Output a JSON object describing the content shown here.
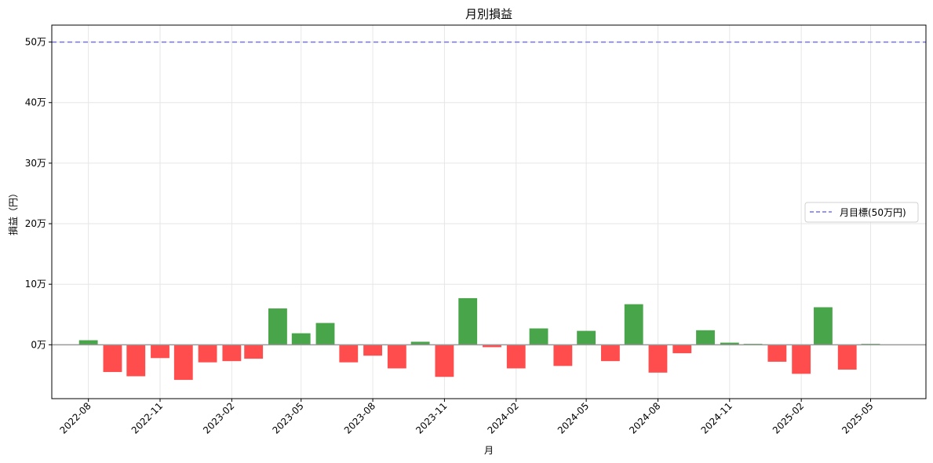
{
  "chart_data": {
    "type": "bar",
    "title": "月別損益",
    "xlabel": "月",
    "ylabel": "損益（円）",
    "ylim": [
      -89000,
      528000
    ],
    "x_range": [
      "2022-06-15",
      "2025-07-11"
    ],
    "yticks": [
      0,
      100000,
      200000,
      300000,
      400000,
      500000
    ],
    "yticklabels": [
      "0万",
      "10万",
      "20万",
      "30万",
      "40万",
      "50万"
    ],
    "xticks": [
      "2022-08-01",
      "2022-11-01",
      "2023-02-01",
      "2023-05-01",
      "2023-08-01",
      "2023-11-01",
      "2024-02-01",
      "2024-05-01",
      "2024-08-01",
      "2024-11-01",
      "2025-02-01",
      "2025-05-01"
    ],
    "xticklabels": [
      "2022-08",
      "2022-11",
      "2023-02",
      "2023-05",
      "2023-08",
      "2023-11",
      "2024-02",
      "2024-05",
      "2024-08",
      "2024-11",
      "2025-02",
      "2025-05"
    ],
    "categories": [
      "2022-08-01",
      "2022-09-01",
      "2022-10-01",
      "2022-11-01",
      "2022-12-01",
      "2023-01-01",
      "2023-02-01",
      "2023-03-01",
      "2023-04-01",
      "2023-05-01",
      "2023-06-01",
      "2023-07-01",
      "2023-08-01",
      "2023-09-01",
      "2023-10-01",
      "2023-11-01",
      "2023-12-01",
      "2024-01-01",
      "2024-02-01",
      "2024-03-01",
      "2024-04-01",
      "2024-05-01",
      "2024-06-01",
      "2024-07-01",
      "2024-08-01",
      "2024-09-01",
      "2024-10-01",
      "2024-11-01",
      "2024-12-01",
      "2025-01-01",
      "2025-02-01",
      "2025-03-01",
      "2025-04-01",
      "2025-05-01"
    ],
    "values": [
      7500,
      -45000,
      -52000,
      -22000,
      -58000,
      -29000,
      -27000,
      -23000,
      60000,
      19000,
      36000,
      -29000,
      -18000,
      -39000,
      5000,
      -53000,
      77000,
      -4000,
      -39000,
      27000,
      -35000,
      23000,
      -27000,
      67000,
      -46000,
      -14000,
      24000,
      3500,
      1500,
      -28000,
      -48000,
      62000,
      -41000,
      1500
    ],
    "colors": {
      "positive": "#49a54a",
      "negative": "#ff4d4d",
      "target": "#7373f0",
      "zero": "#999999",
      "grid": "#e6e6e6"
    },
    "target": {
      "value": 500000,
      "label": "月目標(50万円)"
    },
    "legend": {
      "position": "center-right"
    },
    "grid": true
  }
}
